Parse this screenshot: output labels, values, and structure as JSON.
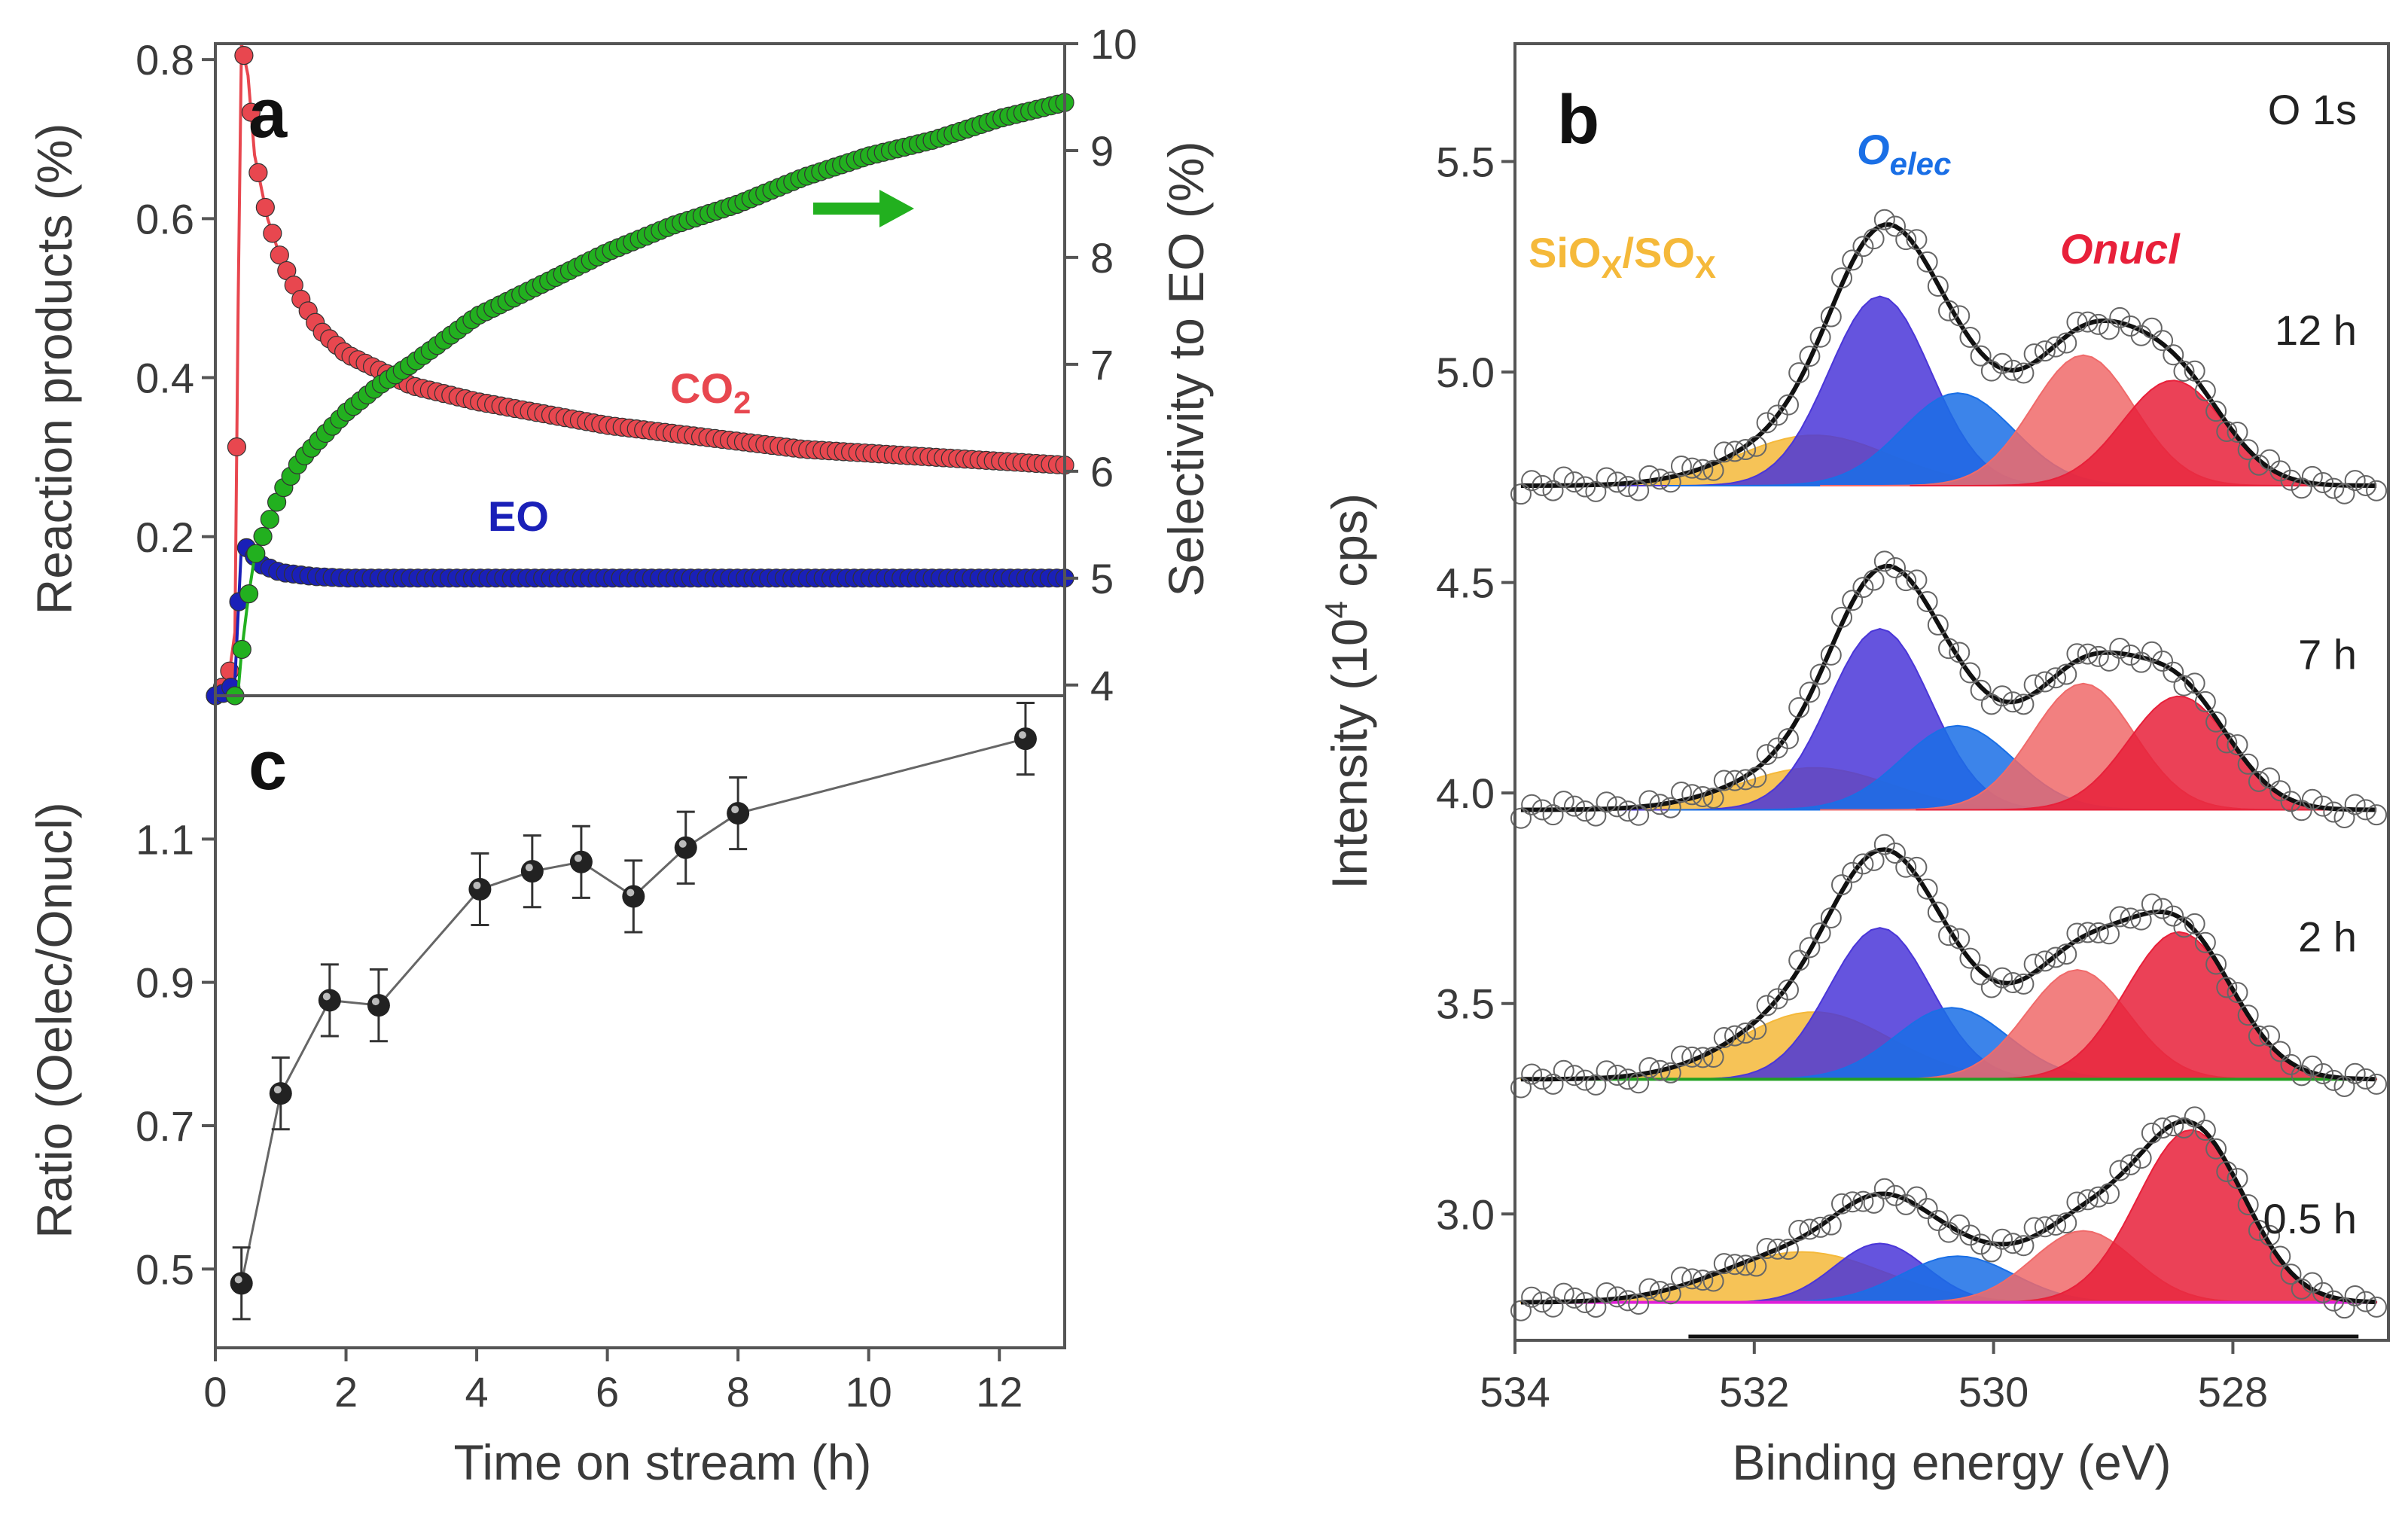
{
  "colors": {
    "co2": "#e8474f",
    "eo": "#1a20b8",
    "selectivity": "#22b01f",
    "sio": "#f5b93a",
    "oelec_violet": "#4a36d8",
    "oelec_blue": "#1a6fe6",
    "onucl_light": "#f06a6a",
    "onucl_red": "#e8203a",
    "baseline_2h": "#22a022",
    "baseline_05h": "#e020d8",
    "frame": "#555555",
    "markers": "#222222"
  },
  "chart_data": [
    {
      "panel": "a",
      "type": "line",
      "xlabel": "",
      "ylabel": "Reaction products (%)",
      "y2label": "Selectivity to EO (%)",
      "xlim": [
        0,
        13
      ],
      "ylim": [
        0,
        0.82
      ],
      "y2lim": [
        3.9,
        10
      ],
      "yticks": [
        "0.2",
        "0.4",
        "0.6",
        "0.8"
      ],
      "y2ticks": [
        "4",
        "5",
        "6",
        "7",
        "8",
        "9",
        "10"
      ],
      "labels": {
        "co2": "CO",
        "co2_sub": "2",
        "eo": "EO"
      },
      "series": [
        {
          "name": "CO2",
          "axis": "left",
          "x": [
            0.0,
            0.2,
            0.3,
            0.35,
            0.4,
            0.5,
            0.6,
            0.8,
            1.0,
            1.3,
            1.6,
            2.0,
            2.5,
            3.0,
            4.0,
            5.0,
            6.0,
            7.0,
            8.0,
            9.0,
            10.0,
            11.0,
            12.0,
            13.0
          ],
          "y": [
            0.0,
            0.02,
            0.08,
            0.5,
            0.82,
            0.78,
            0.68,
            0.6,
            0.55,
            0.5,
            0.46,
            0.43,
            0.41,
            0.39,
            0.37,
            0.355,
            0.34,
            0.33,
            0.32,
            0.31,
            0.305,
            0.3,
            0.295,
            0.29
          ]
        },
        {
          "name": "EO",
          "axis": "left",
          "x": [
            0.0,
            0.2,
            0.3,
            0.4,
            0.5,
            0.7,
            1.0,
            1.5,
            2.0,
            3.0,
            4.0,
            6.0,
            8.0,
            10.0,
            12.0,
            13.0
          ],
          "y": [
            0.0,
            0.005,
            0.02,
            0.19,
            0.185,
            0.165,
            0.155,
            0.15,
            0.148,
            0.148,
            0.148,
            0.148,
            0.148,
            0.148,
            0.148,
            0.148
          ]
        },
        {
          "name": "Selectivity to EO",
          "axis": "right",
          "x": [
            0.3,
            0.35,
            0.4,
            0.5,
            0.6,
            0.8,
            1.0,
            1.3,
            1.6,
            2.0,
            2.5,
            3.0,
            4.0,
            5.0,
            6.0,
            7.0,
            8.0,
            9.0,
            10.0,
            11.0,
            12.0,
            13.0
          ],
          "y": [
            3.9,
            3.95,
            4.3,
            4.8,
            5.2,
            5.5,
            5.8,
            6.1,
            6.3,
            6.55,
            6.8,
            7.0,
            7.45,
            7.75,
            8.05,
            8.3,
            8.5,
            8.75,
            8.95,
            9.1,
            9.3,
            9.45
          ]
        }
      ]
    },
    {
      "panel": "b",
      "type": "line",
      "xlabel": "Binding energy (eV)",
      "ylabel": "Intensity (10",
      "ylabel_sup": "4",
      "ylabel_tail": " cps)",
      "xlim": [
        534,
        526.7
      ],
      "ylim": [
        2.7,
        5.78
      ],
      "xticks": [
        "534",
        "532",
        "530",
        "528"
      ],
      "yticks": [
        "3.0",
        "3.5",
        "4.0",
        "4.5",
        "5.0",
        "5.5"
      ],
      "region_label": "O 1s",
      "legend": {
        "sio": "SiO",
        "sio_x1": "X",
        "sio_mid": "/SO",
        "sio_x2": "X",
        "oelec": "O",
        "oelec_sub": "elec",
        "onucl": "Onucl"
      },
      "spectra": [
        {
          "time": "12 h",
          "baseline": 4.73,
          "components": [
            {
              "name": "SiOx/SOx",
              "center": 531.5,
              "height": 0.12,
              "fwhm": 1.5
            },
            {
              "name": "Oelec 1",
              "center": 530.95,
              "height": 0.45,
              "fwhm": 1.0
            },
            {
              "name": "Oelec 2",
              "center": 530.3,
              "height": 0.22,
              "fwhm": 1.1
            },
            {
              "name": "Onucl 1",
              "center": 529.25,
              "height": 0.31,
              "fwhm": 1.0
            },
            {
              "name": "Onucl 2",
              "center": 528.5,
              "height": 0.25,
              "fwhm": 1.0
            }
          ]
        },
        {
          "time": "7 h",
          "baseline": 3.96,
          "components": [
            {
              "name": "SiOx/SOx",
              "center": 531.5,
              "height": 0.1,
              "fwhm": 1.5
            },
            {
              "name": "Oelec 1",
              "center": 530.95,
              "height": 0.43,
              "fwhm": 1.0
            },
            {
              "name": "Oelec 2",
              "center": 530.3,
              "height": 0.2,
              "fwhm": 1.1
            },
            {
              "name": "Onucl 1",
              "center": 529.25,
              "height": 0.3,
              "fwhm": 1.0
            },
            {
              "name": "Onucl 2",
              "center": 528.45,
              "height": 0.27,
              "fwhm": 1.0
            }
          ]
        },
        {
          "time": "2 h",
          "baseline": 3.32,
          "components": [
            {
              "name": "SiOx/SOx",
              "center": 531.5,
              "height": 0.16,
              "fwhm": 1.5
            },
            {
              "name": "Oelec 1",
              "center": 530.95,
              "height": 0.36,
              "fwhm": 1.0
            },
            {
              "name": "Oelec 2",
              "center": 530.35,
              "height": 0.17,
              "fwhm": 1.1
            },
            {
              "name": "Onucl 1",
              "center": 529.3,
              "height": 0.26,
              "fwhm": 1.0
            },
            {
              "name": "Onucl 2",
              "center": 528.45,
              "height": 0.35,
              "fwhm": 1.05
            }
          ]
        },
        {
          "time": "0.5 h",
          "baseline": 2.79,
          "components": [
            {
              "name": "SiOx/SOx",
              "center": 531.6,
              "height": 0.12,
              "fwhm": 1.6
            },
            {
              "name": "Oelec 1",
              "center": 530.95,
              "height": 0.14,
              "fwhm": 0.9
            },
            {
              "name": "Oelec 2",
              "center": 530.3,
              "height": 0.11,
              "fwhm": 1.1
            },
            {
              "name": "Onucl 1",
              "center": 529.25,
              "height": 0.17,
              "fwhm": 1.0
            },
            {
              "name": "Onucl 2",
              "center": 528.35,
              "height": 0.41,
              "fwhm": 1.05
            }
          ]
        }
      ]
    },
    {
      "panel": "c",
      "type": "scatter",
      "xlabel": "Time on stream (h)",
      "ylabel": "Ratio (Oelec/Onucl)",
      "xlim": [
        0,
        13
      ],
      "ylim": [
        0.39,
        1.3
      ],
      "xticks": [
        "0",
        "2",
        "4",
        "6",
        "8",
        "10",
        "12"
      ],
      "yticks": [
        "0.5",
        "0.7",
        "0.9",
        "1.1"
      ],
      "x": [
        0.4,
        1.0,
        1.75,
        2.5,
        4.05,
        4.85,
        5.6,
        6.4,
        7.2,
        8.0,
        12.4
      ],
      "y": [
        0.48,
        0.745,
        0.875,
        0.868,
        1.03,
        1.055,
        1.068,
        1.02,
        1.088,
        1.136,
        1.24
      ],
      "err": [
        0.05,
        0.05,
        0.05,
        0.05,
        0.05,
        0.05,
        0.05,
        0.05,
        0.05,
        0.05,
        0.05
      ]
    }
  ]
}
